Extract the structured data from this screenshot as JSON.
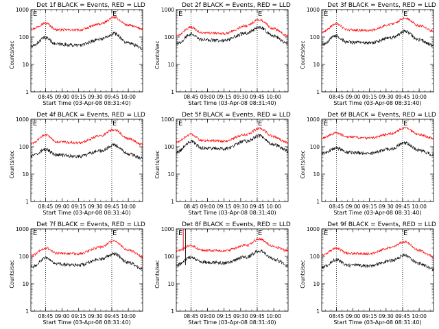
{
  "chart_data": [
    {
      "type": "line",
      "title": "Det 1f BLACK = Events, RED = LLD",
      "xlabel": "Start Time (03-Apr-08 08:31:40)",
      "ylabel": "Counts/sec",
      "yscale": "log",
      "ylim": [
        1,
        1000
      ],
      "y_ticks": [
        "1",
        "10",
        "100",
        "1000"
      ],
      "xlim": [
        "08:31:40",
        "10:13:00"
      ],
      "x_ticks": [
        "08:45",
        "09:00",
        "09:15",
        "09:30",
        "09:45",
        "10:00"
      ],
      "vertical_lines": [
        "08:45",
        "09:45"
      ],
      "markers": [
        "E",
        "E"
      ],
      "series": [
        {
          "color": "#ff0000",
          "x": [
            "08:32",
            "08:45",
            "08:55",
            "09:15",
            "09:35",
            "09:47",
            "10:00",
            "10:13"
          ],
          "y": [
            195,
            320,
            185,
            180,
            300,
            520,
            270,
            200
          ]
        },
        {
          "color": "#000000",
          "x": [
            "08:32",
            "08:45",
            "08:55",
            "09:15",
            "09:35",
            "09:47",
            "10:00",
            "10:13"
          ],
          "y": [
            45,
            95,
            55,
            50,
            85,
            135,
            60,
            40
          ]
        }
      ]
    },
    {
      "type": "line",
      "title": "Det 2f BLACK = Events, RED = LLD",
      "xlabel": "Start Time (03-Apr-08 08:31:40)",
      "ylabel": "Counts/sec",
      "yscale": "log",
      "ylim": [
        1,
        1000
      ],
      "y_ticks": [
        "1",
        "10",
        "100",
        "1000"
      ],
      "xlim": [
        "08:31:40",
        "10:13:00"
      ],
      "x_ticks": [
        "08:45",
        "09:00",
        "09:15",
        "09:30",
        "09:45",
        "10:00"
      ],
      "vertical_lines": [
        "08:45",
        "09:45"
      ],
      "markers": [
        "E",
        "E"
      ],
      "series": [
        {
          "color": "#ff0000",
          "x": [
            "08:32",
            "08:45",
            "08:55",
            "09:15",
            "09:35",
            "09:47",
            "10:00",
            "10:13"
          ],
          "y": [
            110,
            230,
            140,
            135,
            260,
            430,
            200,
            110
          ]
        },
        {
          "color": "#000000",
          "x": [
            "08:32",
            "08:45",
            "08:55",
            "09:15",
            "09:35",
            "09:47",
            "10:00",
            "10:13"
          ],
          "y": [
            55,
            130,
            80,
            75,
            140,
            230,
            110,
            55
          ]
        }
      ]
    },
    {
      "type": "line",
      "title": "Det 3f BLACK = Events, RED = LLD",
      "xlabel": "Start Time (03-Apr-08 08:31:40)",
      "ylabel": "Counts/sec",
      "yscale": "log",
      "ylim": [
        1,
        1000
      ],
      "y_ticks": [
        "1",
        "10",
        "100",
        "1000"
      ],
      "xlim": [
        "08:31:40",
        "10:13:00"
      ],
      "x_ticks": [
        "08:45",
        "09:00",
        "09:15",
        "09:30",
        "09:45",
        "10:00"
      ],
      "vertical_lines": [
        "08:45",
        "09:45"
      ],
      "markers": [
        "E",
        "E"
      ],
      "series": [
        {
          "color": "#ff0000",
          "x": [
            "08:32",
            "08:45",
            "08:55",
            "09:15",
            "09:35",
            "09:47",
            "10:00",
            "10:13"
          ],
          "y": [
            155,
            300,
            185,
            175,
            290,
            500,
            260,
            165
          ]
        },
        {
          "color": "#000000",
          "x": [
            "08:32",
            "08:45",
            "08:55",
            "09:15",
            "09:35",
            "09:47",
            "10:00",
            "10:13"
          ],
          "y": [
            55,
            110,
            65,
            60,
            95,
            160,
            80,
            50
          ]
        }
      ]
    },
    {
      "type": "line",
      "title": "Det 4f BLACK = Events, RED = LLD",
      "xlabel": "Start Time (03-Apr-08 08:31:40)",
      "ylabel": "Counts/sec",
      "yscale": "log",
      "ylim": [
        1,
        1000
      ],
      "y_ticks": [
        "1",
        "10",
        "100",
        "1000"
      ],
      "xlim": [
        "08:31:40",
        "10:13:00"
      ],
      "x_ticks": [
        "08:45",
        "09:00",
        "09:15",
        "09:30",
        "09:45",
        "10:00"
      ],
      "vertical_lines": [
        "08:45",
        "09:45"
      ],
      "markers": [
        "E",
        "E"
      ],
      "series": [
        {
          "color": "#ff0000",
          "x": [
            "08:32",
            "08:45",
            "08:55",
            "09:15",
            "09:35",
            "09:47",
            "10:00",
            "10:13"
          ],
          "y": [
            130,
            270,
            150,
            140,
            250,
            420,
            200,
            120
          ]
        },
        {
          "color": "#000000",
          "x": [
            "08:32",
            "08:45",
            "08:55",
            "09:15",
            "09:35",
            "09:47",
            "10:00",
            "10:13"
          ],
          "y": [
            45,
            80,
            50,
            45,
            70,
            115,
            55,
            38
          ]
        }
      ]
    },
    {
      "type": "line",
      "title": "Det 5f BLACK = Events, RED = LLD",
      "xlabel": "Start Time (03-Apr-08 08:31:40)",
      "ylabel": "Counts/sec",
      "yscale": "log",
      "ylim": [
        1,
        1000
      ],
      "y_ticks": [
        "1",
        "10",
        "100",
        "1000"
      ],
      "xlim": [
        "08:31:40",
        "10:13:00"
      ],
      "x_ticks": [
        "08:45",
        "09:00",
        "09:15",
        "09:30",
        "09:45",
        "10:00"
      ],
      "vertical_lines": [
        "08:45",
        "09:45"
      ],
      "markers": [
        "E",
        "E"
      ],
      "series": [
        {
          "color": "#ff0000",
          "x": [
            "08:32",
            "08:45",
            "08:55",
            "09:15",
            "09:35",
            "09:47",
            "10:00",
            "10:13"
          ],
          "y": [
            145,
            280,
            170,
            160,
            280,
            470,
            230,
            140
          ]
        },
        {
          "color": "#000000",
          "x": [
            "08:32",
            "08:45",
            "08:55",
            "09:15",
            "09:35",
            "09:47",
            "10:00",
            "10:13"
          ],
          "y": [
            65,
            155,
            90,
            85,
            160,
            250,
            120,
            70
          ]
        }
      ]
    },
    {
      "type": "line",
      "title": "Det 6f BLACK = Events, RED = LLD",
      "xlabel": "Start Time (03-Apr-08 08:31:40)",
      "ylabel": "Counts/sec",
      "yscale": "log",
      "ylim": [
        1,
        1000
      ],
      "y_ticks": [
        "1",
        "10",
        "100",
        "1000"
      ],
      "xlim": [
        "08:31:40",
        "10:13:00"
      ],
      "x_ticks": [
        "08:45",
        "09:00",
        "09:15",
        "09:30",
        "09:45",
        "10:00"
      ],
      "vertical_lines": [
        "08:45",
        "09:45"
      ],
      "markers": [
        "E",
        "E"
      ],
      "series": [
        {
          "color": "#ff0000",
          "x": [
            "08:32",
            "08:45",
            "08:55",
            "09:15",
            "09:35",
            "09:47",
            "10:00",
            "10:13"
          ],
          "y": [
            210,
            320,
            225,
            205,
            300,
            480,
            280,
            200
          ]
        },
        {
          "color": "#000000",
          "x": [
            "08:32",
            "08:45",
            "08:55",
            "09:15",
            "09:35",
            "09:47",
            "10:00",
            "10:13"
          ],
          "y": [
            55,
            90,
            62,
            58,
            85,
            140,
            75,
            50
          ]
        }
      ]
    },
    {
      "type": "line",
      "title": "Det 7f BLACK = Events, RED = LLD",
      "xlabel": "Start Time (03-Apr-08 08:31:40)",
      "ylabel": "Counts/sec",
      "yscale": "log",
      "ylim": [
        1,
        1000
      ],
      "y_ticks": [
        "1",
        "10",
        "100",
        "1000"
      ],
      "xlim": [
        "08:31:40",
        "10:13:00"
      ],
      "x_ticks": [
        "08:45",
        "09:00",
        "09:15",
        "09:30",
        "09:45",
        "10:00"
      ],
      "vertical_lines": [
        "08:45",
        "09:45"
      ],
      "markers": [
        "E",
        "E"
      ],
      "series": [
        {
          "color": "#ff0000",
          "x": [
            "08:32",
            "08:45",
            "08:55",
            "09:15",
            "09:35",
            "09:47",
            "10:00",
            "10:13"
          ],
          "y": [
            105,
            200,
            130,
            125,
            220,
            360,
            170,
            100
          ]
        },
        {
          "color": "#000000",
          "x": [
            "08:32",
            "08:45",
            "08:55",
            "09:15",
            "09:35",
            "09:47",
            "10:00",
            "10:13"
          ],
          "y": [
            40,
            85,
            52,
            48,
            80,
            125,
            60,
            35
          ]
        }
      ]
    },
    {
      "type": "line",
      "title": "Det 8f BLACK = Events, RED = LLD",
      "xlabel": "Start Time (03-Apr-08 08:31:40)",
      "ylabel": "Counts/sec",
      "yscale": "log",
      "ylim": [
        1,
        1000
      ],
      "y_ticks": [
        "1",
        "10",
        "100",
        "1000"
      ],
      "xlim": [
        "08:31:40",
        "10:13:00"
      ],
      "x_ticks": [
        "08:45",
        "09:00",
        "09:15",
        "09:30",
        "09:45",
        "10:00"
      ],
      "vertical_lines": [
        "08:45",
        "09:45"
      ],
      "markers": [
        "E",
        "E"
      ],
      "spike": {
        "x": [
          "08:38",
          "08:40"
        ],
        "y": 1000
      },
      "series": [
        {
          "color": "#ff0000",
          "x": [
            "08:32",
            "08:45",
            "08:55",
            "09:15",
            "09:35",
            "09:47",
            "10:00",
            "10:13"
          ],
          "y": [
            160,
            250,
            170,
            160,
            250,
            430,
            230,
            160
          ]
        },
        {
          "color": "#000000",
          "x": [
            "08:32",
            "08:45",
            "08:55",
            "09:15",
            "09:35",
            "09:47",
            "10:00",
            "10:13"
          ],
          "y": [
            48,
            95,
            62,
            58,
            95,
            160,
            78,
            48
          ]
        }
      ]
    },
    {
      "type": "line",
      "title": "Det 9f BLACK = Events, RED = LLD",
      "xlabel": "Start Time (03-Apr-08 08:31:40)",
      "ylabel": "Counts/sec",
      "yscale": "log",
      "ylim": [
        1,
        1000
      ],
      "y_ticks": [
        "1",
        "10",
        "100",
        "1000"
      ],
      "xlim": [
        "08:31:40",
        "10:13:00"
      ],
      "x_ticks": [
        "08:45",
        "09:00",
        "09:15",
        "09:30",
        "09:45",
        "10:00"
      ],
      "vertical_lines": [
        "08:45",
        "09:45"
      ],
      "markers": [
        "E",
        "E"
      ],
      "series": [
        {
          "color": "#ff0000",
          "x": [
            "08:32",
            "08:45",
            "08:55",
            "09:15",
            "09:35",
            "09:47",
            "10:00",
            "10:13"
          ],
          "y": [
            110,
            200,
            130,
            125,
            210,
            340,
            165,
            100
          ]
        },
        {
          "color": "#000000",
          "x": [
            "08:32",
            "08:45",
            "08:55",
            "09:15",
            "09:35",
            "09:47",
            "10:00",
            "10:13"
          ],
          "y": [
            40,
            75,
            48,
            45,
            70,
            110,
            55,
            35
          ]
        }
      ]
    }
  ]
}
